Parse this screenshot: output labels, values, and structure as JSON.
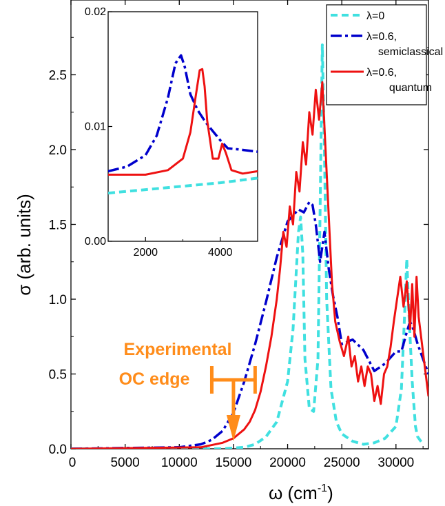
{
  "chart_data": {
    "type": "line",
    "xlabel_base": "ω (cm",
    "xlabel_exp": "-1",
    "xlabel_close": ")",
    "ylabel": "σ (arb. units)",
    "xlim": [
      0,
      33000
    ],
    "ylim": [
      0,
      3.0
    ],
    "x_ticks": [
      "0",
      "5000",
      "10000",
      "15000",
      "20000",
      "25000",
      "30000"
    ],
    "y_ticks": [
      "0.0",
      "0.5",
      "1.0",
      "1.5",
      "2.0",
      "2.5"
    ],
    "grid": false,
    "legend_position": "top-right",
    "colors": {
      "lambda0": "#40e0e0",
      "semiclassical": "#0000cc",
      "quantum": "#ee1111",
      "annotation": "#ff8c1a"
    },
    "series": [
      {
        "key": "lambda0",
        "name": "λ=0",
        "x": [
          0,
          14000,
          16000,
          17000,
          18000,
          19000,
          20000,
          20500,
          21000,
          21200,
          21400,
          21600,
          22000,
          22400,
          22800,
          23000,
          23200,
          23400,
          23600,
          24000,
          24500,
          25000,
          26000,
          27000,
          28000,
          29000,
          30000,
          30500,
          30800,
          31000,
          31200,
          31500,
          31800,
          32000,
          32500
        ],
        "y": [
          0,
          0.0,
          0.01,
          0.03,
          0.08,
          0.18,
          0.45,
          0.8,
          1.45,
          1.55,
          1.3,
          0.6,
          0.27,
          0.25,
          0.6,
          1.6,
          2.7,
          2.0,
          1.0,
          0.4,
          0.18,
          0.1,
          0.05,
          0.03,
          0.04,
          0.07,
          0.15,
          0.4,
          0.9,
          1.27,
          0.9,
          0.45,
          0.15,
          0.08,
          0.03
        ]
      },
      {
        "key": "semiclassical",
        "name": "λ=0.6, semiclassical",
        "x": [
          0,
          10000,
          12000,
          13000,
          14000,
          15000,
          16000,
          17000,
          18000,
          19000,
          20000,
          21000,
          21500,
          22000,
          22300,
          22600,
          23000,
          23400,
          23800,
          24200,
          24600,
          25000,
          26000,
          27000,
          28000,
          29000,
          30000,
          30500,
          31000,
          31300,
          31600,
          32000,
          33000
        ],
        "y": [
          0,
          0.01,
          0.03,
          0.06,
          0.12,
          0.24,
          0.45,
          0.7,
          0.98,
          1.28,
          1.52,
          1.6,
          1.58,
          1.65,
          1.63,
          1.5,
          1.25,
          1.45,
          1.2,
          1.02,
          0.88,
          0.7,
          0.73,
          0.66,
          0.52,
          0.57,
          0.65,
          0.65,
          0.78,
          0.85,
          0.8,
          0.7,
          0.5
        ]
      },
      {
        "key": "quantum",
        "name": "λ=0.6, quantum",
        "x": [
          0,
          12000,
          14000,
          15000,
          16000,
          16500,
          17000,
          17500,
          18000,
          18500,
          19000,
          19300,
          19600,
          19900,
          20200,
          20500,
          20800,
          21100,
          21400,
          21700,
          22000,
          22300,
          22600,
          22900,
          23200,
          23500,
          23800,
          24100,
          24400,
          24800,
          25200,
          25600,
          25900,
          26200,
          26500,
          26800,
          27100,
          27400,
          27700,
          28000,
          28300,
          28600,
          28900,
          29200,
          29500,
          29800,
          30100,
          30400,
          30700,
          31000,
          31300,
          31500,
          31700,
          31900,
          32100,
          32400,
          33000
        ],
        "y": [
          0,
          0.01,
          0.04,
          0.07,
          0.13,
          0.18,
          0.26,
          0.38,
          0.55,
          0.75,
          1.0,
          1.2,
          1.45,
          1.35,
          1.62,
          1.5,
          1.85,
          1.72,
          2.05,
          1.9,
          2.25,
          2.1,
          2.4,
          2.2,
          2.45,
          2.0,
          1.55,
          1.1,
          0.85,
          0.72,
          0.62,
          0.75,
          0.55,
          0.62,
          0.45,
          0.55,
          0.42,
          0.55,
          0.5,
          0.32,
          0.42,
          0.3,
          0.5,
          0.55,
          0.68,
          0.85,
          1.0,
          1.15,
          0.95,
          1.12,
          0.8,
          1.1,
          0.75,
          1.15,
          0.88,
          0.7,
          0.35
        ]
      }
    ],
    "inset": {
      "xlim": [
        1000,
        5000
      ],
      "ylim": [
        0.0,
        0.02
      ],
      "x_ticks": [
        "2000",
        "4000"
      ],
      "y_ticks": [
        "0.00",
        "0.01",
        "0.02"
      ],
      "series": [
        {
          "key": "lambda0",
          "x": [
            1000,
            2000,
            3000,
            4000,
            5000
          ],
          "y": [
            0.0042,
            0.0045,
            0.0048,
            0.0051,
            0.0055
          ]
        },
        {
          "key": "semiclassical",
          "x": [
            1000,
            1500,
            2000,
            2300,
            2600,
            2800,
            2950,
            3050,
            3200,
            3400,
            3600,
            3800,
            4000,
            4200,
            4500,
            5000
          ],
          "y": [
            0.0061,
            0.0065,
            0.0075,
            0.0092,
            0.0125,
            0.0155,
            0.0162,
            0.0152,
            0.0128,
            0.0114,
            0.0104,
            0.0096,
            0.0088,
            0.0081,
            0.008,
            0.0078
          ]
        },
        {
          "key": "quantum",
          "x": [
            1000,
            2000,
            2600,
            3000,
            3200,
            3350,
            3450,
            3520,
            3580,
            3650,
            3800,
            3950,
            4050,
            4150,
            4300,
            4600,
            5000
          ],
          "y": [
            0.0058,
            0.0058,
            0.0062,
            0.0072,
            0.0095,
            0.0128,
            0.0149,
            0.015,
            0.0135,
            0.0105,
            0.0072,
            0.0072,
            0.0085,
            0.0077,
            0.0062,
            0.0059,
            0.0061
          ]
        }
      ]
    },
    "annotation": {
      "line1": "Experimental",
      "line2": "OC edge",
      "edge_x": 15000,
      "range": [
        13000,
        17000
      ]
    }
  }
}
